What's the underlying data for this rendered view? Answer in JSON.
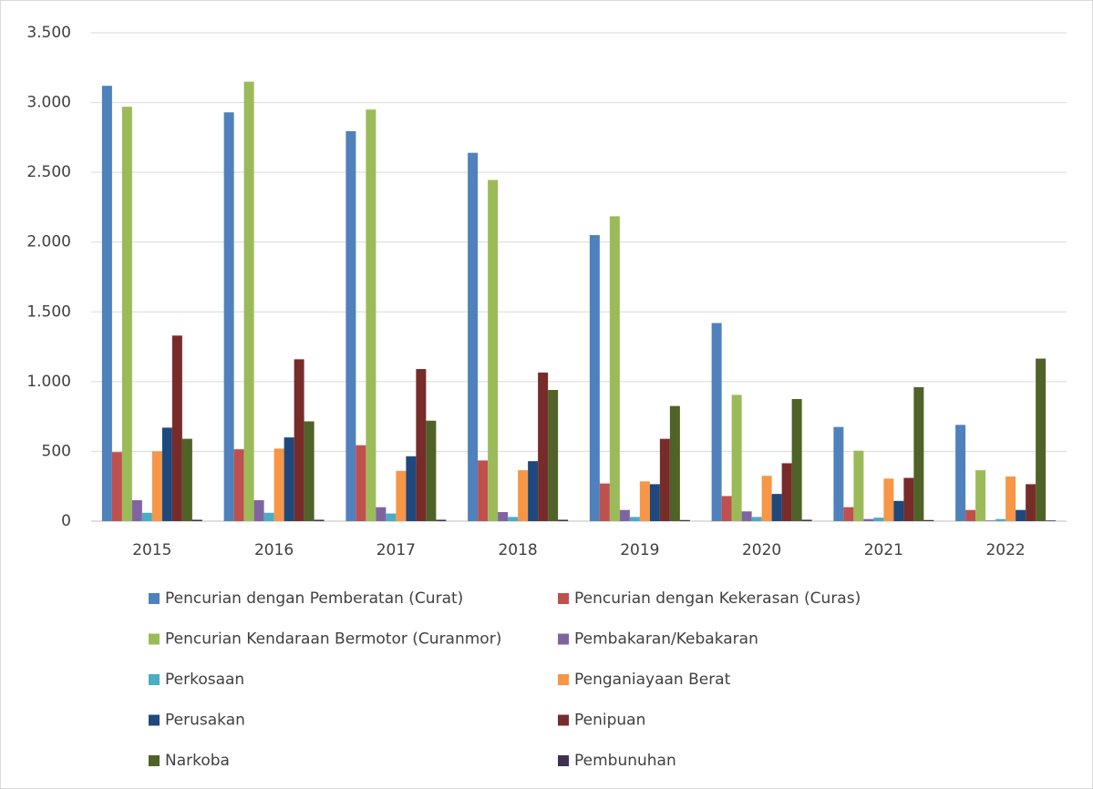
{
  "chart_data": {
    "type": "bar",
    "categories": [
      "2015",
      "2016",
      "2017",
      "2018",
      "2019",
      "2020",
      "2021",
      "2022"
    ],
    "series": [
      {
        "name": "Pencurian dengan Pemberatan (Curat)",
        "color": "#4f81bd",
        "values": [
          3120,
          2930,
          2795,
          2640,
          2050,
          1420,
          675,
          690
        ]
      },
      {
        "name": "Pencurian dengan Kekerasan (Curas)",
        "color": "#c0504d",
        "values": [
          495,
          515,
          544,
          435,
          270,
          180,
          100,
          80
        ]
      },
      {
        "name": "Pencurian Kendaraan Bermotor (Curanmor)",
        "color": "#9bbb59",
        "values": [
          2970,
          3150,
          2950,
          2445,
          2185,
          905,
          505,
          365
        ]
      },
      {
        "name": "Pembakaran/Kebakaran",
        "color": "#8064a2",
        "values": [
          150,
          150,
          100,
          65,
          80,
          70,
          15,
          5
        ]
      },
      {
        "name": "Perkosaan",
        "color": "#4bacc6",
        "values": [
          60,
          60,
          55,
          30,
          30,
          30,
          25,
          15
        ]
      },
      {
        "name": "Penganiayaan Berat",
        "color": "#f79646",
        "values": [
          500,
          520,
          360,
          365,
          285,
          325,
          305,
          320
        ]
      },
      {
        "name": "Perusakan",
        "color": "#1f497d",
        "values": [
          670,
          600,
          465,
          430,
          265,
          195,
          145,
          80
        ]
      },
      {
        "name": "Penipuan",
        "color": "#772c2a",
        "values": [
          1330,
          1160,
          1090,
          1065,
          590,
          415,
          310,
          265
        ]
      },
      {
        "name": "Narkoba",
        "color": "#4f6228",
        "values": [
          590,
          715,
          720,
          940,
          825,
          875,
          960,
          1165
        ]
      },
      {
        "name": "Pembunuhan",
        "color": "#403151",
        "values": [
          10,
          10,
          10,
          10,
          8,
          10,
          8,
          5
        ]
      }
    ],
    "ylim": [
      0,
      3500
    ],
    "yticks": [
      0,
      500,
      {
        "value": 1000,
        "label": "1.000"
      },
      {
        "value": 1500,
        "label": "1.500"
      },
      {
        "value": 2000,
        "label": "2.000"
      },
      {
        "value": 2500,
        "label": "2.500"
      },
      {
        "value": 3000,
        "label": "3.000"
      },
      {
        "value": 3500,
        "label": "3.500"
      }
    ],
    "grid": true,
    "legend": "bottom"
  }
}
